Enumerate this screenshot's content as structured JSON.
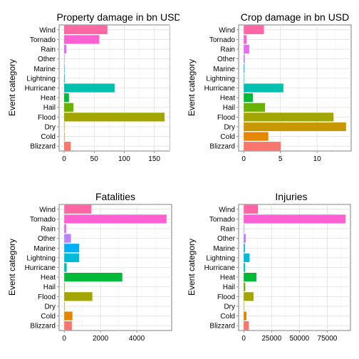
{
  "colors": {
    "Blizzard": "#F8766D",
    "Cold": "#E58700",
    "Dry": "#C99800",
    "Flood": "#A3A500",
    "Hail": "#6BB100",
    "Heat": "#00BA38",
    "Hurricane": "#00C0AF",
    "Lightning": "#00BCD8",
    "Marine": "#00B0F6",
    "Other": "#B983FF",
    "Rain": "#E76BF3",
    "Tornado": "#FD61D1",
    "Wind": "#FF67A4"
  },
  "chart_data": [
    {
      "type": "bar",
      "orientation": "horizontal",
      "title": "Property damage in bn USD",
      "xlabel": "",
      "ylabel": "Event category",
      "categories": [
        "Blizzard",
        "Cold",
        "Dry",
        "Flood",
        "Hail",
        "Heat",
        "Hurricane",
        "Lightning",
        "Marine",
        "Other",
        "Rain",
        "Tornado",
        "Wind"
      ],
      "values": [
        11,
        0.5,
        0.3,
        167,
        15.5,
        8,
        84,
        1,
        0.5,
        0.2,
        3.5,
        58.5,
        72
      ],
      "xlim": [
        -8.35,
        175.35
      ],
      "xticks": [
        0,
        50,
        100,
        150
      ],
      "xtick_labels": [
        "0",
        "50",
        "100",
        "150"
      ],
      "grid": true
    },
    {
      "type": "bar",
      "orientation": "horizontal",
      "title": "Crop damage in bn USD",
      "xlabel": "",
      "ylabel": "Event category",
      "categories": [
        "Blizzard",
        "Cold",
        "Dry",
        "Flood",
        "Hail",
        "Heat",
        "Hurricane",
        "Lightning",
        "Marine",
        "Other",
        "Rain",
        "Tornado",
        "Wind"
      ],
      "values": [
        5.05,
        3.35,
        13.95,
        12.25,
        2.9,
        1.25,
        5.4,
        0.05,
        0.1,
        0.15,
        0.75,
        0.4,
        2.75
      ],
      "xlim": [
        -0.7,
        14.65
      ],
      "xticks": [
        0,
        5,
        10
      ],
      "xtick_labels": [
        "0",
        "5",
        "10"
      ],
      "grid": true
    },
    {
      "type": "bar",
      "orientation": "horizontal",
      "title": "Fatalities",
      "xlabel": "",
      "ylabel": "Event category",
      "categories": [
        "Blizzard",
        "Cold",
        "Dry",
        "Flood",
        "Hail",
        "Heat",
        "Hurricane",
        "Lightning",
        "Marine",
        "Other",
        "Rain",
        "Tornado",
        "Wind"
      ],
      "values": [
        420,
        450,
        10,
        1550,
        15,
        3200,
        135,
        820,
        820,
        370,
        110,
        5640,
        1500
      ],
      "xlim": [
        -282,
        5922
      ],
      "xticks": [
        0,
        2000,
        4000
      ],
      "xtick_labels": [
        "0",
        "2000",
        "4000"
      ],
      "grid": true
    },
    {
      "type": "bar",
      "orientation": "horizontal",
      "title": "Injuries",
      "xlabel": "",
      "ylabel": "Event category",
      "categories": [
        "Blizzard",
        "Cold",
        "Dry",
        "Flood",
        "Hail",
        "Heat",
        "Hurricane",
        "Lightning",
        "Marine",
        "Other",
        "Rain",
        "Tornado",
        "Wind"
      ],
      "values": [
        4600,
        2500,
        50,
        8800,
        1400,
        11400,
        1300,
        5300,
        1100,
        1900,
        300,
        91350,
        12800
      ],
      "xlim": [
        -4560,
        95800
      ],
      "xticks": [
        0,
        25000,
        50000,
        75000
      ],
      "xtick_labels": [
        "0",
        "25000",
        "50000",
        "75000"
      ],
      "grid": true
    }
  ]
}
